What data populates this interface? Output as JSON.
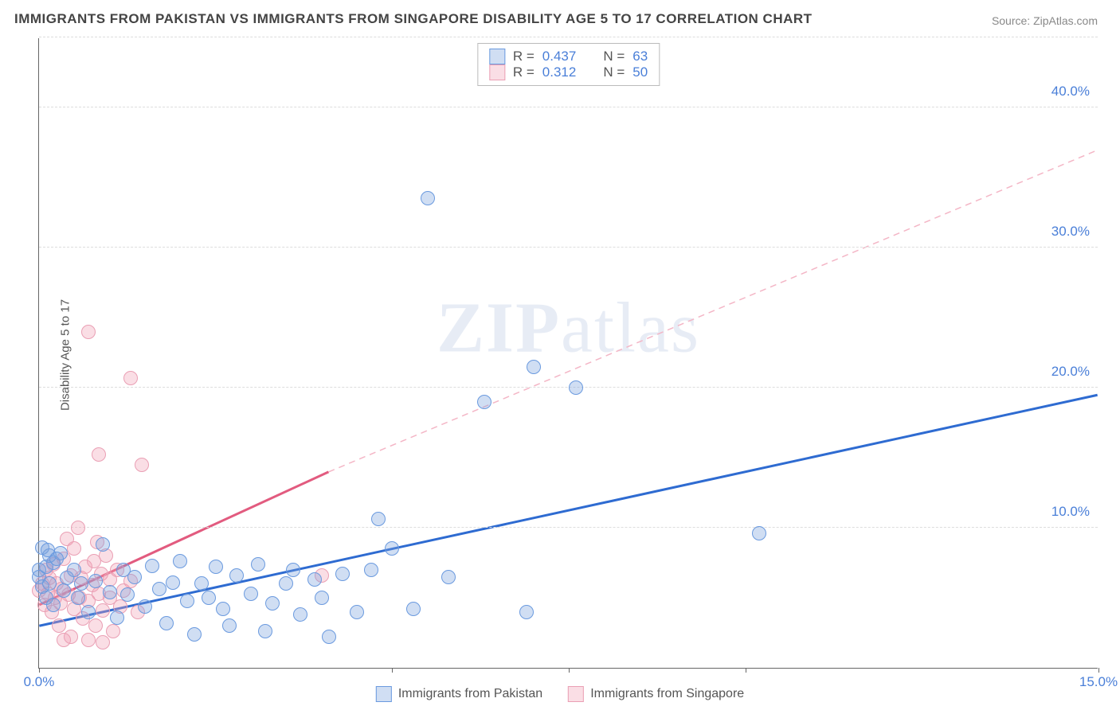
{
  "title": "IMMIGRANTS FROM PAKISTAN VS IMMIGRANTS FROM SINGAPORE DISABILITY AGE 5 TO 17 CORRELATION CHART",
  "source": "Source: ZipAtlas.com",
  "ylabel": "Disability Age 5 to 17",
  "watermark_zip": "ZIP",
  "watermark_atlas": "atlas",
  "chart": {
    "type": "scatter",
    "xlim": [
      0,
      15
    ],
    "ylim": [
      0,
      45
    ],
    "x_ticks": [
      0,
      5,
      7.5,
      10,
      15
    ],
    "x_labels": {
      "0": "0.0%",
      "15": "15.0%"
    },
    "y_gridlines": [
      10,
      20,
      30,
      40,
      45
    ],
    "y_labels": {
      "10": "10.0%",
      "20": "20.0%",
      "30": "30.0%",
      "40": "40.0%"
    },
    "background_color": "#ffffff",
    "grid_color": "#dddddd",
    "axis_color": "#666666",
    "tick_label_color": "#4a7fd8",
    "series": {
      "pakistan": {
        "label": "Immigrants from Pakistan",
        "fill": "rgba(120,160,220,0.35)",
        "stroke": "#6a9adf",
        "marker_radius": 9,
        "trend": {
          "x1": 0,
          "y1": 3.0,
          "x2": 15,
          "y2": 19.5,
          "color": "#2e6bd1",
          "width": 3,
          "dashed": false,
          "dash_ext_y2": 19.5
        },
        "points": [
          [
            0.0,
            7.0
          ],
          [
            0.0,
            6.5
          ],
          [
            0.05,
            5.8
          ],
          [
            0.1,
            7.2
          ],
          [
            0.1,
            5.0
          ],
          [
            0.15,
            6.0
          ],
          [
            0.2,
            7.5
          ],
          [
            0.2,
            4.5
          ],
          [
            0.3,
            8.2
          ],
          [
            0.35,
            5.5
          ],
          [
            0.4,
            6.4
          ],
          [
            0.5,
            7.0
          ],
          [
            0.55,
            5.0
          ],
          [
            0.6,
            6.0
          ],
          [
            0.7,
            4.0
          ],
          [
            0.8,
            6.2
          ],
          [
            0.9,
            8.8
          ],
          [
            1.0,
            5.4
          ],
          [
            1.1,
            3.6
          ],
          [
            1.2,
            7.0
          ],
          [
            1.25,
            5.2
          ],
          [
            1.35,
            6.5
          ],
          [
            1.5,
            4.4
          ],
          [
            1.6,
            7.3
          ],
          [
            1.7,
            5.6
          ],
          [
            1.8,
            3.2
          ],
          [
            1.9,
            6.1
          ],
          [
            2.0,
            7.6
          ],
          [
            2.1,
            4.8
          ],
          [
            2.2,
            2.4
          ],
          [
            2.3,
            6.0
          ],
          [
            2.4,
            5.0
          ],
          [
            2.5,
            7.2
          ],
          [
            2.6,
            4.2
          ],
          [
            2.7,
            3.0
          ],
          [
            2.8,
            6.6
          ],
          [
            3.0,
            5.3
          ],
          [
            3.1,
            7.4
          ],
          [
            3.2,
            2.6
          ],
          [
            3.3,
            4.6
          ],
          [
            3.5,
            6.0
          ],
          [
            3.6,
            7.0
          ],
          [
            3.7,
            3.8
          ],
          [
            3.9,
            6.3
          ],
          [
            4.0,
            5.0
          ],
          [
            4.1,
            2.2
          ],
          [
            4.3,
            6.7
          ],
          [
            4.5,
            4.0
          ],
          [
            4.7,
            7.0
          ],
          [
            4.8,
            10.6
          ],
          [
            5.0,
            8.5
          ],
          [
            5.3,
            4.2
          ],
          [
            5.5,
            33.5
          ],
          [
            5.8,
            6.5
          ],
          [
            6.3,
            19.0
          ],
          [
            6.9,
            4.0
          ],
          [
            7.0,
            21.5
          ],
          [
            7.6,
            20.0
          ],
          [
            10.2,
            9.6
          ],
          [
            0.05,
            8.6
          ],
          [
            0.15,
            8.0
          ],
          [
            0.25,
            7.8
          ],
          [
            0.12,
            8.4
          ]
        ]
      },
      "singapore": {
        "label": "Immigrants from Singapore",
        "fill": "rgba(240,160,180,0.35)",
        "stroke": "#ea9fb4",
        "marker_radius": 9,
        "trend": {
          "x1": 0,
          "y1": 4.5,
          "x2": 4.1,
          "y2": 14.0,
          "color": "#e25b7f",
          "width": 3,
          "dashed": false,
          "dash_ext_y2": 37.0
        },
        "points": [
          [
            0.0,
            5.5
          ],
          [
            0.05,
            6.0
          ],
          [
            0.08,
            4.5
          ],
          [
            0.1,
            7.0
          ],
          [
            0.12,
            5.3
          ],
          [
            0.15,
            6.4
          ],
          [
            0.18,
            4.0
          ],
          [
            0.2,
            7.4
          ],
          [
            0.22,
            5.0
          ],
          [
            0.25,
            6.0
          ],
          [
            0.28,
            3.0
          ],
          [
            0.3,
            4.6
          ],
          [
            0.32,
            5.6
          ],
          [
            0.35,
            2.0
          ],
          [
            0.35,
            7.8
          ],
          [
            0.4,
            9.2
          ],
          [
            0.42,
            5.2
          ],
          [
            0.45,
            6.6
          ],
          [
            0.45,
            2.2
          ],
          [
            0.5,
            4.2
          ],
          [
            0.5,
            8.5
          ],
          [
            0.55,
            10.0
          ],
          [
            0.58,
            5.0
          ],
          [
            0.6,
            6.4
          ],
          [
            0.62,
            3.5
          ],
          [
            0.65,
            7.2
          ],
          [
            0.7,
            4.8
          ],
          [
            0.7,
            2.0
          ],
          [
            0.75,
            5.9
          ],
          [
            0.78,
            7.6
          ],
          [
            0.8,
            3.0
          ],
          [
            0.82,
            9.0
          ],
          [
            0.85,
            5.3
          ],
          [
            0.88,
            6.7
          ],
          [
            0.9,
            4.1
          ],
          [
            0.9,
            1.8
          ],
          [
            0.95,
            8.0
          ],
          [
            1.0,
            5.0
          ],
          [
            1.0,
            6.3
          ],
          [
            1.05,
            2.6
          ],
          [
            1.1,
            7.0
          ],
          [
            1.15,
            4.4
          ],
          [
            0.7,
            24.0
          ],
          [
            1.3,
            20.7
          ],
          [
            0.85,
            15.2
          ],
          [
            1.45,
            14.5
          ],
          [
            1.2,
            5.5
          ],
          [
            1.3,
            6.2
          ],
          [
            1.4,
            4.0
          ],
          [
            4.0,
            6.6
          ]
        ]
      }
    }
  },
  "stats": {
    "rows": [
      {
        "swatch": "blue",
        "r": "0.437",
        "n": "63"
      },
      {
        "swatch": "pink",
        "r": "0.312",
        "n": "50"
      }
    ],
    "r_label": "R =",
    "n_label": "N ="
  },
  "legend": {
    "pakistan": "Immigrants from Pakistan",
    "singapore": "Immigrants from Singapore"
  }
}
